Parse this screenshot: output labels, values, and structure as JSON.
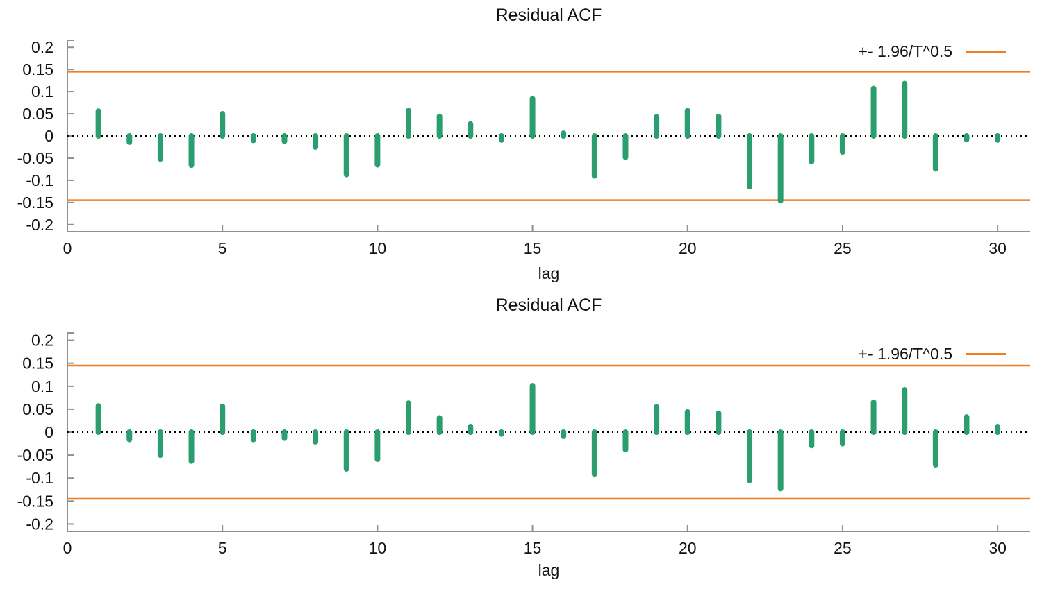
{
  "figure": {
    "background": "#ffffff",
    "colors": {
      "bar_green": "#2b9e6f",
      "band_orange": "#ee7d20",
      "axis_gray": "#909090",
      "zero_line_black": "#000000",
      "text": "#111111"
    }
  },
  "chart_data": [
    {
      "type": "bar",
      "title": "Residual ACF",
      "xlabel": "lag",
      "ylabel": "",
      "legend_label": "+- 1.96/T^0.5",
      "legend_position": "top-right",
      "band": {
        "value": 0.145,
        "label": "+- 1.96/T^0.5"
      },
      "grid": false,
      "zero_line": "dotted",
      "xlim": [
        0,
        31.05
      ],
      "ylim": [
        -0.216,
        0.216
      ],
      "xticks": [
        0,
        5,
        10,
        15,
        20,
        25,
        30
      ],
      "yticks": [
        0.2,
        0.15,
        0.1,
        0.05,
        0,
        -0.05,
        -0.1,
        -0.15,
        -0.2
      ],
      "x": [
        1,
        2,
        3,
        4,
        5,
        6,
        7,
        8,
        9,
        10,
        11,
        12,
        13,
        14,
        15,
        16,
        17,
        18,
        19,
        20,
        21,
        22,
        23,
        24,
        25,
        26,
        27,
        28,
        29,
        30
      ],
      "values": [
        0.056,
        -0.014,
        -0.052,
        -0.066,
        0.05,
        -0.01,
        -0.012,
        -0.025,
        -0.087,
        -0.065,
        0.057,
        0.044,
        0.027,
        -0.009,
        0.084,
        0.006,
        -0.09,
        -0.048,
        0.043,
        0.057,
        0.044,
        -0.114,
        -0.146,
        -0.058,
        -0.036,
        0.107,
        0.118,
        -0.074,
        -0.008,
        -0.009
      ]
    },
    {
      "type": "bar",
      "title": "Residual ACF",
      "xlabel": "lag",
      "ylabel": "",
      "legend_label": "+- 1.96/T^0.5",
      "legend_position": "top-right",
      "band": {
        "value": 0.145,
        "label": "+- 1.96/T^0.5"
      },
      "grid": false,
      "zero_line": "dotted",
      "xlim": [
        0,
        31.05
      ],
      "ylim": [
        -0.216,
        0.216
      ],
      "xticks": [
        0,
        5,
        10,
        15,
        20,
        25,
        30
      ],
      "yticks": [
        0.2,
        0.15,
        0.1,
        0.05,
        0,
        -0.05,
        -0.1,
        -0.15,
        -0.2
      ],
      "x": [
        1,
        2,
        3,
        4,
        5,
        6,
        7,
        8,
        9,
        10,
        11,
        12,
        13,
        14,
        15,
        16,
        17,
        18,
        19,
        20,
        21,
        22,
        23,
        24,
        25,
        26,
        27,
        28,
        29,
        30
      ],
      "values": [
        0.057,
        -0.016,
        -0.05,
        -0.063,
        0.056,
        -0.016,
        -0.013,
        -0.021,
        -0.08,
        -0.059,
        0.063,
        0.031,
        0.012,
        -0.004,
        0.101,
        -0.009,
        -0.091,
        -0.038,
        0.055,
        0.044,
        0.041,
        -0.105,
        -0.123,
        -0.029,
        -0.025,
        0.065,
        0.092,
        -0.071,
        0.033,
        0.012
      ]
    }
  ]
}
